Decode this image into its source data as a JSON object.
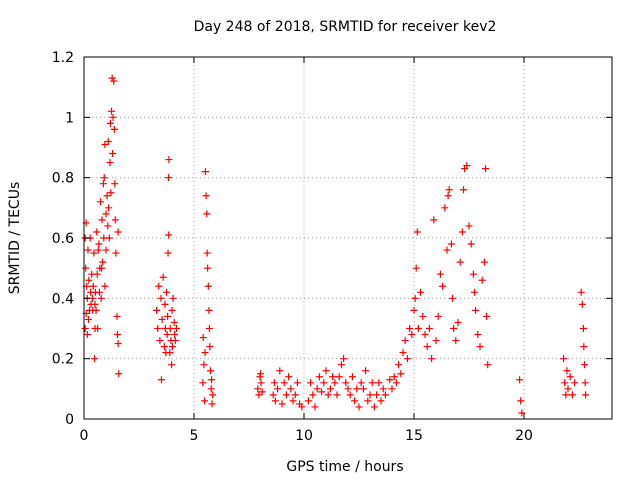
{
  "chart_data": {
    "type": "scatter",
    "title": "Day 248 of 2018, SRMTID for receiver kev2",
    "xlabel": "GPS time / hours",
    "ylabel": "SRMTID / TECUs",
    "xlim": [
      0,
      24
    ],
    "ylim": [
      0,
      1.2
    ],
    "x_ticks": [
      0,
      5,
      10,
      15,
      20
    ],
    "x_tick_labels": [
      "0",
      "5",
      "10",
      "15",
      "20"
    ],
    "y_ticks": [
      0,
      0.2,
      0.4,
      0.6,
      0.8,
      1.0,
      1.2
    ],
    "y_tick_labels": [
      "0",
      "0.2",
      "0.4",
      "0.6",
      "0.8",
      "1",
      "1.2"
    ],
    "grid": true,
    "marker": "+",
    "series": [
      {
        "name": "SRMTID kev2",
        "color": "#ff0000",
        "points": [
          [
            0.05,
            0.3
          ],
          [
            0.05,
            0.6
          ],
          [
            0.08,
            0.5
          ],
          [
            0.1,
            0.35
          ],
          [
            0.1,
            0.65
          ],
          [
            0.12,
            0.44
          ],
          [
            0.15,
            0.28
          ],
          [
            0.15,
            0.4
          ],
          [
            0.18,
            0.56
          ],
          [
            0.2,
            0.33
          ],
          [
            0.22,
            0.46
          ],
          [
            0.25,
            0.36
          ],
          [
            0.28,
            0.6
          ],
          [
            0.3,
            0.42
          ],
          [
            0.32,
            0.38
          ],
          [
            0.35,
            0.48
          ],
          [
            0.38,
            0.4
          ],
          [
            0.4,
            0.36
          ],
          [
            0.42,
            0.44
          ],
          [
            0.45,
            0.55
          ],
          [
            0.48,
            0.2
          ],
          [
            0.5,
            0.38
          ],
          [
            0.5,
            0.3
          ],
          [
            0.52,
            0.42
          ],
          [
            0.55,
            0.36
          ],
          [
            0.58,
            0.62
          ],
          [
            0.6,
            0.48
          ],
          [
            0.62,
            0.3
          ],
          [
            0.65,
            0.56
          ],
          [
            0.68,
            0.58
          ],
          [
            0.7,
            0.42
          ],
          [
            0.72,
            0.5
          ],
          [
            0.75,
            0.72
          ],
          [
            0.78,
            0.4
          ],
          [
            0.8,
            0.5
          ],
          [
            0.82,
            0.66
          ],
          [
            0.85,
            0.52
          ],
          [
            0.88,
            0.78
          ],
          [
            0.9,
            0.6
          ],
          [
            0.92,
            0.8
          ],
          [
            0.95,
            0.44
          ],
          [
            0.95,
            0.91
          ],
          [
            1.0,
            0.68
          ],
          [
            1.0,
            0.56
          ],
          [
            1.05,
            0.74
          ],
          [
            1.08,
            0.64
          ],
          [
            1.1,
            0.92
          ],
          [
            1.12,
            0.7
          ],
          [
            1.15,
            0.6
          ],
          [
            1.18,
            0.85
          ],
          [
            1.2,
            0.98
          ],
          [
            1.22,
            0.75
          ],
          [
            1.25,
            1.02
          ],
          [
            1.28,
            1.13
          ],
          [
            1.3,
            0.88
          ],
          [
            1.32,
            1.0
          ],
          [
            1.35,
            1.12
          ],
          [
            1.38,
            0.96
          ],
          [
            1.4,
            0.78
          ],
          [
            1.42,
            0.66
          ],
          [
            1.45,
            0.55
          ],
          [
            1.5,
            0.34
          ],
          [
            1.52,
            0.28
          ],
          [
            1.55,
            0.25
          ],
          [
            1.58,
            0.15
          ],
          [
            1.55,
            0.62
          ],
          [
            3.3,
            0.36
          ],
          [
            3.35,
            0.3
          ],
          [
            3.4,
            0.44
          ],
          [
            3.45,
            0.26
          ],
          [
            3.5,
            0.4
          ],
          [
            3.52,
            0.13
          ],
          [
            3.55,
            0.33
          ],
          [
            3.6,
            0.47
          ],
          [
            3.65,
            0.24
          ],
          [
            3.68,
            0.38
          ],
          [
            3.7,
            0.3
          ],
          [
            3.72,
            0.22
          ],
          [
            3.75,
            0.42
          ],
          [
            3.78,
            0.28
          ],
          [
            3.8,
            0.34
          ],
          [
            3.82,
            0.55
          ],
          [
            3.84,
            0.8
          ],
          [
            3.86,
            0.86
          ],
          [
            3.85,
            0.61
          ],
          [
            3.9,
            0.22
          ],
          [
            3.92,
            0.3
          ],
          [
            3.95,
            0.26
          ],
          [
            3.98,
            0.18
          ],
          [
            4.0,
            0.36
          ],
          [
            4.02,
            0.24
          ],
          [
            4.05,
            0.4
          ],
          [
            4.1,
            0.32
          ],
          [
            4.12,
            0.28
          ],
          [
            4.15,
            0.26
          ],
          [
            4.2,
            0.3
          ],
          [
            5.4,
            0.12
          ],
          [
            5.42,
            0.27
          ],
          [
            5.45,
            0.18
          ],
          [
            5.48,
            0.06
          ],
          [
            5.5,
            0.22
          ],
          [
            5.52,
            0.82
          ],
          [
            5.55,
            0.74
          ],
          [
            5.58,
            0.68
          ],
          [
            5.6,
            0.55
          ],
          [
            5.62,
            0.5
          ],
          [
            5.65,
            0.44
          ],
          [
            5.68,
            0.36
          ],
          [
            5.7,
            0.3
          ],
          [
            5.72,
            0.24
          ],
          [
            5.75,
            0.16
          ],
          [
            5.78,
            0.1
          ],
          [
            5.8,
            0.13
          ],
          [
            5.82,
            0.05
          ],
          [
            5.85,
            0.08
          ],
          [
            7.9,
            0.1
          ],
          [
            7.95,
            0.08
          ],
          [
            8.0,
            0.14
          ],
          [
            8.02,
            0.15
          ],
          [
            8.05,
            0.12
          ],
          [
            8.1,
            0.09
          ],
          [
            8.6,
            0.08
          ],
          [
            8.65,
            0.12
          ],
          [
            8.7,
            0.06
          ],
          [
            8.8,
            0.1
          ],
          [
            8.9,
            0.16
          ],
          [
            9.0,
            0.05
          ],
          [
            9.1,
            0.12
          ],
          [
            9.2,
            0.08
          ],
          [
            9.3,
            0.14
          ],
          [
            9.4,
            0.1
          ],
          [
            9.5,
            0.06
          ],
          [
            9.6,
            0.08
          ],
          [
            9.7,
            0.12
          ],
          [
            9.8,
            0.05
          ],
          [
            9.9,
            0.04
          ],
          [
            10.2,
            0.06
          ],
          [
            10.3,
            0.12
          ],
          [
            10.4,
            0.08
          ],
          [
            10.5,
            0.04
          ],
          [
            10.6,
            0.1
          ],
          [
            10.7,
            0.14
          ],
          [
            10.8,
            0.09
          ],
          [
            10.9,
            0.12
          ],
          [
            11.0,
            0.16
          ],
          [
            11.1,
            0.08
          ],
          [
            11.2,
            0.1
          ],
          [
            11.3,
            0.14
          ],
          [
            11.4,
            0.12
          ],
          [
            11.5,
            0.08
          ],
          [
            11.6,
            0.14
          ],
          [
            11.7,
            0.18
          ],
          [
            11.8,
            0.2
          ],
          [
            11.9,
            0.12
          ],
          [
            12.0,
            0.1
          ],
          [
            12.1,
            0.08
          ],
          [
            12.2,
            0.14
          ],
          [
            12.3,
            0.06
          ],
          [
            12.4,
            0.1
          ],
          [
            12.5,
            0.04
          ],
          [
            12.6,
            0.12
          ],
          [
            12.7,
            0.1
          ],
          [
            12.8,
            0.16
          ],
          [
            12.9,
            0.06
          ],
          [
            13.0,
            0.08
          ],
          [
            13.1,
            0.12
          ],
          [
            13.2,
            0.04
          ],
          [
            13.3,
            0.08
          ],
          [
            13.4,
            0.12
          ],
          [
            13.5,
            0.06
          ],
          [
            13.6,
            0.1
          ],
          [
            13.7,
            0.08
          ],
          [
            13.9,
            0.13
          ],
          [
            14.0,
            0.1
          ],
          [
            14.1,
            0.14
          ],
          [
            14.2,
            0.12
          ],
          [
            14.3,
            0.18
          ],
          [
            14.4,
            0.15
          ],
          [
            14.5,
            0.22
          ],
          [
            14.6,
            0.26
          ],
          [
            14.7,
            0.2
          ],
          [
            14.8,
            0.3
          ],
          [
            14.9,
            0.28
          ],
          [
            15.0,
            0.36
          ],
          [
            15.05,
            0.4
          ],
          [
            15.1,
            0.5
          ],
          [
            15.15,
            0.62
          ],
          [
            15.2,
            0.3
          ],
          [
            15.3,
            0.42
          ],
          [
            15.4,
            0.34
          ],
          [
            15.5,
            0.28
          ],
          [
            15.6,
            0.24
          ],
          [
            15.7,
            0.3
          ],
          [
            15.8,
            0.2
          ],
          [
            15.9,
            0.66
          ],
          [
            16.0,
            0.26
          ],
          [
            16.1,
            0.34
          ],
          [
            16.2,
            0.48
          ],
          [
            16.3,
            0.44
          ],
          [
            16.4,
            0.7
          ],
          [
            16.5,
            0.56
          ],
          [
            16.55,
            0.74
          ],
          [
            16.6,
            0.76
          ],
          [
            16.7,
            0.58
          ],
          [
            16.75,
            0.4
          ],
          [
            16.8,
            0.3
          ],
          [
            16.9,
            0.26
          ],
          [
            17.0,
            0.32
          ],
          [
            17.1,
            0.52
          ],
          [
            17.2,
            0.62
          ],
          [
            17.25,
            0.76
          ],
          [
            17.3,
            0.83
          ],
          [
            17.4,
            0.84
          ],
          [
            17.5,
            0.64
          ],
          [
            17.6,
            0.58
          ],
          [
            17.7,
            0.48
          ],
          [
            17.75,
            0.42
          ],
          [
            17.8,
            0.36
          ],
          [
            17.9,
            0.28
          ],
          [
            18.0,
            0.24
          ],
          [
            18.1,
            0.46
          ],
          [
            18.2,
            0.52
          ],
          [
            18.25,
            0.83
          ],
          [
            18.3,
            0.34
          ],
          [
            18.35,
            0.18
          ],
          [
            19.8,
            0.13
          ],
          [
            19.85,
            0.06
          ],
          [
            19.9,
            0.02
          ],
          [
            21.8,
            0.2
          ],
          [
            21.85,
            0.12
          ],
          [
            21.9,
            0.08
          ],
          [
            21.95,
            0.16
          ],
          [
            22.0,
            0.1
          ],
          [
            22.1,
            0.14
          ],
          [
            22.2,
            0.08
          ],
          [
            22.3,
            0.12
          ],
          [
            22.6,
            0.42
          ],
          [
            22.65,
            0.38
          ],
          [
            22.7,
            0.3
          ],
          [
            22.72,
            0.24
          ],
          [
            22.75,
            0.18
          ],
          [
            22.78,
            0.12
          ],
          [
            22.8,
            0.08
          ]
        ]
      }
    ]
  }
}
